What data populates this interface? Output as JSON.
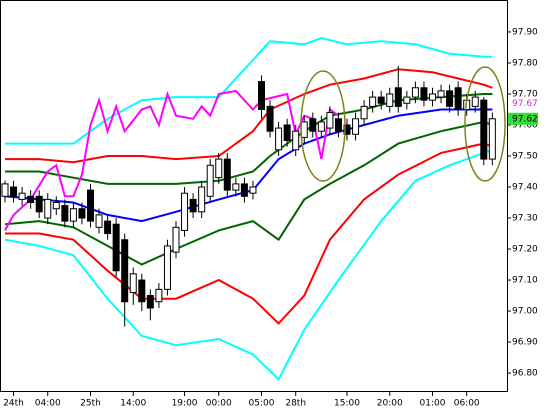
{
  "chart_data": {
    "type": "candlestick",
    "categories": [
      null,
      "24th",
      null,
      null,
      null,
      "04:00",
      null,
      null,
      null,
      null,
      "25th",
      null,
      null,
      null,
      null,
      "14:00",
      null,
      null,
      null,
      null,
      null,
      "19:00",
      null,
      null,
      null,
      "00:00",
      null,
      null,
      null,
      null,
      "05:00",
      null,
      null,
      null,
      "28th",
      null,
      null,
      null,
      null,
      null,
      "15:00",
      null,
      null,
      null,
      null,
      "20:00",
      null,
      null,
      null,
      null,
      "01:00",
      null,
      null,
      null,
      "06:00",
      null,
      null,
      null
    ],
    "open": [
      97.37,
      97.4,
      97.36,
      97.37,
      97.37,
      97.3,
      97.33,
      97.34,
      97.29,
      97.33,
      97.39,
      97.27,
      97.29,
      97.28,
      97.23,
      97.06,
      97.1,
      97.05,
      97.03,
      97.07,
      97.19,
      97.26,
      97.36,
      97.32,
      97.37,
      97.43,
      97.49,
      97.39,
      97.41,
      97.38,
      97.74,
      97.66,
      97.52,
      97.6,
      97.52,
      97.56,
      97.62,
      97.58,
      97.59,
      97.62,
      97.6,
      97.57,
      97.62,
      97.66,
      97.69,
      97.66,
      97.72,
      97.67,
      97.69,
      97.72,
      97.68,
      97.69,
      97.71,
      97.72,
      97.65,
      97.66,
      97.68,
      97.49
    ],
    "high": [
      97.42,
      97.42,
      97.4,
      97.39,
      97.39,
      97.38,
      97.37,
      97.36,
      97.35,
      97.35,
      97.41,
      97.33,
      97.31,
      97.3,
      97.25,
      97.14,
      97.12,
      97.07,
      97.09,
      97.23,
      97.29,
      97.4,
      97.38,
      97.42,
      97.49,
      97.51,
      97.51,
      97.43,
      97.43,
      97.42,
      97.76,
      97.68,
      97.61,
      97.62,
      97.6,
      97.63,
      97.64,
      97.63,
      97.66,
      97.64,
      97.62,
      97.64,
      97.68,
      97.71,
      97.71,
      97.72,
      97.79,
      97.71,
      97.74,
      97.74,
      97.72,
      97.73,
      97.73,
      97.74,
      97.7,
      97.71,
      97.69,
      97.64
    ],
    "low": [
      97.35,
      97.35,
      97.34,
      97.33,
      97.3,
      97.28,
      97.31,
      97.27,
      97.27,
      97.28,
      97.27,
      97.25,
      97.23,
      97.11,
      96.95,
      97.02,
      97.0,
      96.97,
      97.01,
      97.05,
      97.17,
      97.24,
      97.3,
      97.3,
      97.35,
      97.41,
      97.37,
      97.37,
      97.35,
      97.36,
      97.62,
      97.56,
      97.5,
      97.53,
      97.5,
      97.54,
      97.56,
      97.56,
      97.57,
      97.56,
      97.55,
      97.55,
      97.6,
      97.64,
      97.65,
      97.64,
      97.64,
      97.65,
      97.67,
      97.66,
      97.66,
      97.67,
      97.64,
      97.63,
      97.63,
      97.64,
      97.47,
      97.47
    ],
    "close": [
      97.41,
      97.37,
      97.38,
      97.35,
      97.32,
      97.36,
      97.35,
      97.29,
      97.33,
      97.3,
      97.29,
      97.31,
      97.25,
      97.13,
      97.03,
      97.12,
      97.03,
      97.01,
      97.07,
      97.21,
      97.27,
      97.38,
      97.32,
      97.4,
      97.47,
      97.49,
      97.39,
      97.41,
      97.37,
      97.4,
      97.65,
      97.58,
      97.59,
      97.55,
      97.58,
      97.61,
      97.58,
      97.61,
      97.64,
      97.58,
      97.57,
      97.62,
      97.66,
      97.69,
      97.67,
      97.7,
      97.66,
      97.69,
      97.72,
      97.68,
      97.7,
      97.71,
      97.66,
      97.65,
      97.68,
      97.69,
      97.49,
      97.62
    ],
    "up_color": "#ffffff",
    "down_color": "#000000",
    "series": [
      {
        "color": "#00ffff",
        "x": [
          0,
          4,
          8,
          12,
          16,
          20,
          25,
          29,
          31,
          35,
          37,
          40,
          44,
          48,
          52,
          56,
          57
        ],
        "values": [
          97.54,
          97.54,
          97.54,
          97.62,
          97.68,
          97.69,
          97.69,
          97.81,
          97.87,
          97.86,
          97.88,
          97.86,
          97.87,
          97.86,
          97.83,
          97.82,
          97.82
        ]
      },
      {
        "color": "#ff0000",
        "x": [
          0,
          4,
          8,
          12,
          16,
          20,
          25,
          29,
          31,
          35,
          38,
          42,
          46,
          50,
          53,
          56,
          57
        ],
        "values": [
          97.49,
          97.49,
          97.48,
          97.5,
          97.5,
          97.49,
          97.5,
          97.58,
          97.65,
          97.7,
          97.73,
          97.75,
          97.78,
          97.77,
          97.75,
          97.73,
          97.72
        ]
      },
      {
        "color": "#006400",
        "x": [
          0,
          4,
          8,
          12,
          16,
          20,
          25,
          29,
          31,
          35,
          38,
          42,
          46,
          51,
          56,
          57
        ],
        "values": [
          97.45,
          97.45,
          97.43,
          97.41,
          97.41,
          97.41,
          97.42,
          97.45,
          97.5,
          97.58,
          97.63,
          97.65,
          97.68,
          97.69,
          97.7,
          97.7
        ]
      },
      {
        "color": "#0000ff",
        "x": [
          0,
          4,
          8,
          12,
          16,
          20,
          25,
          29,
          32,
          35,
          38,
          42,
          46,
          51,
          56,
          57
        ],
        "values": [
          97.37,
          97.36,
          97.35,
          97.31,
          97.29,
          97.32,
          97.36,
          97.39,
          97.49,
          97.54,
          97.57,
          97.6,
          97.63,
          97.65,
          97.65,
          97.65
        ]
      },
      {
        "color": "#006400",
        "x": [
          0,
          4,
          8,
          12,
          16,
          20,
          25,
          29,
          32,
          35,
          38,
          42,
          46,
          51,
          56,
          57
        ],
        "values": [
          97.28,
          97.29,
          97.27,
          97.21,
          97.15,
          97.2,
          97.26,
          97.29,
          97.23,
          97.36,
          97.41,
          97.47,
          97.54,
          97.58,
          97.61,
          97.6
        ]
      },
      {
        "color": "#ff0000",
        "x": [
          0,
          4,
          8,
          12,
          16,
          20,
          25,
          29,
          32,
          35,
          38,
          42,
          46,
          51,
          56,
          57
        ],
        "values": [
          97.25,
          97.25,
          97.23,
          97.13,
          97.04,
          97.04,
          97.1,
          97.04,
          96.96,
          97.05,
          97.23,
          97.36,
          97.44,
          97.51,
          97.54,
          97.53
        ]
      },
      {
        "color": "#00ffff",
        "x": [
          0,
          4,
          8,
          12,
          16,
          20,
          25,
          29,
          32,
          35,
          39,
          44,
          48,
          52,
          56,
          57
        ],
        "values": [
          97.23,
          97.21,
          97.18,
          97.04,
          96.92,
          96.89,
          96.91,
          96.86,
          96.78,
          96.94,
          97.1,
          97.29,
          97.42,
          97.47,
          97.51,
          97.52
        ]
      },
      {
        "color": "#ff00ff",
        "x": [
          0,
          1,
          3,
          5,
          6,
          7,
          8,
          9,
          10,
          11,
          12,
          13,
          14,
          16,
          17,
          18,
          19,
          20,
          22,
          23,
          24,
          25,
          27,
          28,
          29,
          30,
          33,
          34,
          35,
          36,
          37,
          38,
          39
        ],
        "values": [
          97.26,
          97.31,
          97.36,
          97.45,
          97.47,
          97.37,
          97.37,
          97.44,
          97.6,
          97.68,
          97.58,
          97.66,
          97.58,
          97.65,
          97.66,
          97.6,
          97.7,
          97.63,
          97.62,
          97.66,
          97.63,
          97.7,
          97.71,
          97.68,
          97.65,
          97.68,
          97.7,
          97.57,
          97.63,
          97.62,
          97.49,
          97.65,
          97.63
        ]
      }
    ],
    "price_labels": [
      {
        "value": 97.67,
        "label": "97.67",
        "color": "#cc33cc"
      },
      {
        "value": 97.62,
        "label": "97.62",
        "color": "#33dd33"
      }
    ],
    "ylim": [
      96.739,
      98.003
    ],
    "yticks": [
      {
        "value": 97.9,
        "label": "97.90"
      },
      {
        "value": 97.8,
        "label": "97.80"
      },
      {
        "value": 97.7,
        "label": "97.70"
      },
      {
        "value": 97.6,
        "label": "97.60"
      },
      {
        "value": 97.5,
        "label": "97.50"
      },
      {
        "value": 97.4,
        "label": "97.40"
      },
      {
        "value": 97.3,
        "label": "97.30"
      },
      {
        "value": 97.2,
        "label": "97.20"
      },
      {
        "value": 97.1,
        "label": "97.10"
      },
      {
        "value": 97.0,
        "label": "97.00"
      },
      {
        "value": 96.9,
        "label": "96.90"
      },
      {
        "value": 96.8,
        "label": "96.80"
      }
    ]
  }
}
